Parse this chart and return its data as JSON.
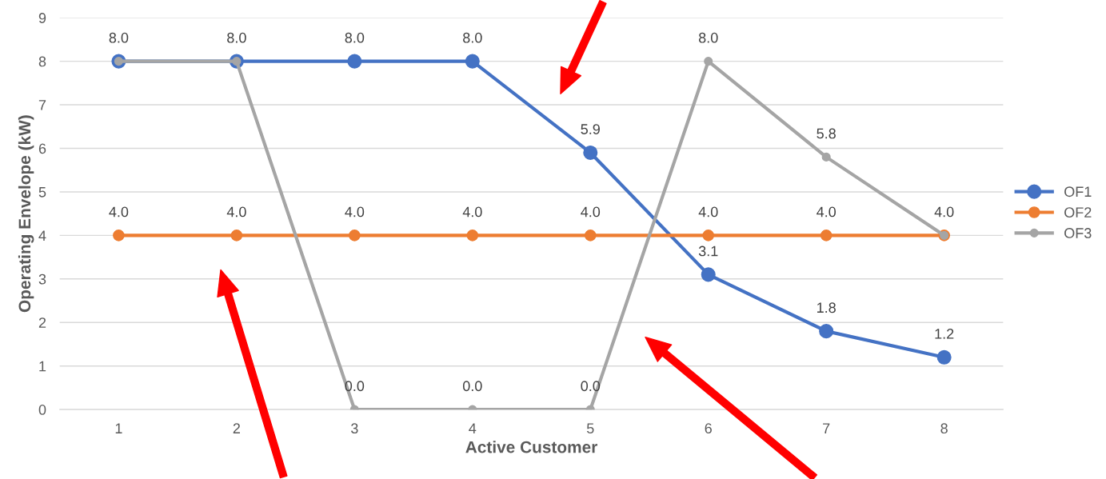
{
  "chart_data": {
    "type": "line",
    "xlabel": "Active Customer",
    "ylabel": "Operating Envelope (kW)",
    "categories": [
      "1",
      "2",
      "3",
      "4",
      "5",
      "6",
      "7",
      "8"
    ],
    "series": [
      {
        "name": "OF1",
        "color": "#4472c4",
        "values": [
          8.0,
          8.0,
          8.0,
          8.0,
          5.9,
          3.1,
          1.8,
          1.2
        ],
        "value_labels": [
          null,
          null,
          "8.0",
          "8.0",
          "5.9",
          "3.1",
          "1.8",
          "1.2"
        ]
      },
      {
        "name": "OF2",
        "color": "#ed7d31",
        "values": [
          4.0,
          4.0,
          4.0,
          4.0,
          4.0,
          4.0,
          4.0,
          4.0
        ],
        "value_labels": [
          "4.0",
          "4.0",
          "4.0",
          "4.0",
          "4.0",
          "4.0",
          "4.0",
          null
        ]
      },
      {
        "name": "OF3",
        "color": "#a5a5a5",
        "values": [
          8.0,
          8.0,
          0.0,
          0.0,
          0.0,
          8.0,
          5.8,
          4.0
        ],
        "value_labels": [
          "8.0",
          "8.0",
          "0.0",
          "0.0",
          "0.0",
          "8.0",
          "5.8",
          "4.0"
        ]
      }
    ],
    "ylim": [
      0,
      9
    ],
    "yticks": [
      0,
      1,
      2,
      3,
      4,
      5,
      6,
      7,
      8,
      9
    ],
    "grid": "y",
    "legend": "right",
    "marker": "circle",
    "line_style": "solid"
  }
}
